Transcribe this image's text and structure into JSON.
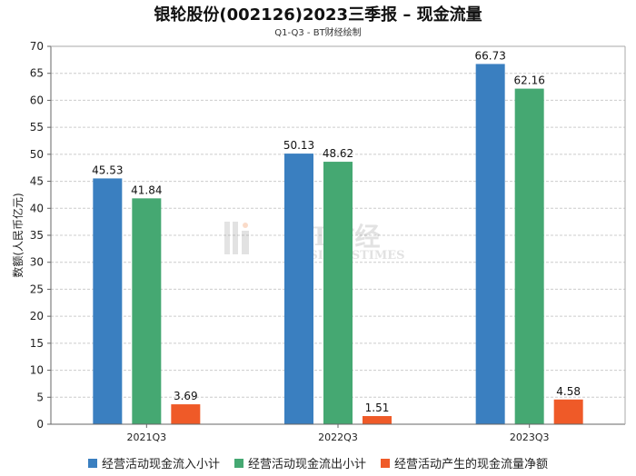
{
  "chart_data": {
    "type": "bar",
    "title": "银轮股份(002126)2023三季报 – 现金流量",
    "subtitle": "Q1-Q3 - BT财经绘制",
    "xlabel": "",
    "ylabel": "数额(人民币亿元)",
    "ylim": [
      0,
      70
    ],
    "yticks": [
      0,
      5,
      10,
      15,
      20,
      25,
      30,
      35,
      40,
      45,
      50,
      55,
      60,
      65,
      70
    ],
    "grid": true,
    "legend_position": "bottom",
    "categories": [
      "2021Q3",
      "2022Q3",
      "2023Q3"
    ],
    "series": [
      {
        "name": "经营活动现金流入小计",
        "color": "#3a7fc0",
        "values": [
          45.53,
          50.13,
          66.73
        ]
      },
      {
        "name": "经营活动现金流出小计",
        "color": "#45a872",
        "values": [
          41.84,
          48.62,
          62.16
        ]
      },
      {
        "name": "经营活动产生的现金流量净额",
        "color": "#ef5a28",
        "values": [
          3.69,
          1.51,
          4.58
        ]
      }
    ],
    "watermark": {
      "cn": "BT财经",
      "en": "BUSINESSTIMES"
    }
  }
}
